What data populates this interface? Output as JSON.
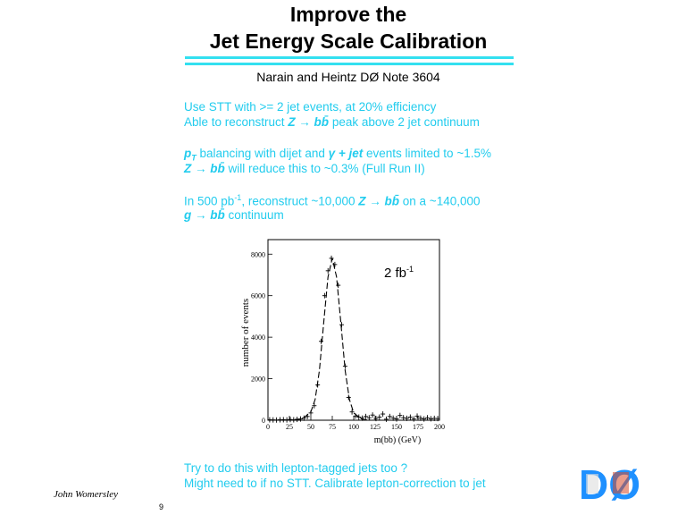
{
  "title": {
    "line1": "Improve the",
    "line2": "Jet Energy Scale Calibration"
  },
  "authors": "Narain and Heintz   DØ Note 3604",
  "block1": {
    "l1": "Use STT with >= 2 jet events, at 20% efficiency",
    "l2a": "Able to reconstruct ",
    "l2m": "Z → bb̄",
    "l2b": "  peak above 2 jet continuum"
  },
  "block2": {
    "l1a": "p",
    "l1sub": "T",
    "l1b": " balancing with dijet and ",
    "l1m": "γ + jet",
    "l1c": " events limited to ~1.5%",
    "l2m": "Z → bb̄",
    "l2b": "  will reduce this to ~0.3%  (Full Run II)"
  },
  "block3": {
    "l1a": "In 500 pb",
    "l1sup": "-1",
    "l1b": ", reconstruct ~10,000 ",
    "l1m": "Z → bb̄",
    "l1c": "  on a ~140,000",
    "l2m": "g → bb̄",
    "l2b": "  continuum"
  },
  "bottom": {
    "l1": "Try to do this with lepton-tagged jets too ?",
    "l2": "Might need to if no STT.   Calibrate lepton-correction to jet"
  },
  "footer": {
    "name": "John Womersley",
    "page": "9"
  },
  "logo_text": "DØ",
  "colors": {
    "accent": "#22ccee",
    "rule": "#33e0f0",
    "logo_blue": "#1e90ff"
  },
  "chart_data": {
    "type": "line",
    "xlabel": "m(bb) (GeV)",
    "ylabel": "number of events",
    "annotation": {
      "text": "2 fb",
      "sup": "-1"
    },
    "xlim": [
      0,
      200
    ],
    "ylim": [
      0,
      8700
    ],
    "xticks": [
      0,
      25,
      50,
      75,
      100,
      125,
      150,
      175,
      200
    ],
    "yticks": [
      0,
      2000,
      4000,
      6000,
      8000
    ],
    "series": [
      {
        "kind": "points",
        "x": [
          2,
          6,
          10,
          14,
          18,
          22,
          26,
          30,
          34,
          38,
          42,
          46,
          50,
          54,
          58,
          62,
          66,
          70,
          74,
          78,
          82,
          86,
          90,
          94,
          98,
          102,
          106,
          110,
          114,
          118,
          122,
          126,
          130,
          134,
          138,
          142,
          146,
          150,
          154,
          158,
          162,
          166,
          170,
          174,
          178,
          182,
          186,
          190,
          194,
          198
        ],
        "y": [
          20,
          15,
          10,
          20,
          25,
          15,
          30,
          20,
          40,
          60,
          100,
          180,
          350,
          700,
          1700,
          3800,
          6000,
          7200,
          7800,
          7500,
          6500,
          4600,
          2600,
          1100,
          400,
          200,
          150,
          100,
          180,
          120,
          250,
          80,
          150,
          300,
          50,
          180,
          100,
          60,
          230,
          120,
          90,
          150,
          60,
          200,
          100,
          60,
          120,
          70,
          90,
          80
        ]
      },
      {
        "kind": "fit",
        "x": [
          0,
          20,
          40,
          50,
          55,
          60,
          65,
          70,
          75,
          80,
          85,
          90,
          95,
          100,
          110,
          120,
          140,
          160,
          200
        ],
        "y": [
          0,
          0,
          60,
          400,
          1000,
          2400,
          4700,
          6900,
          7800,
          6900,
          4700,
          2400,
          1000,
          350,
          40,
          0,
          0,
          0,
          0
        ]
      }
    ]
  }
}
